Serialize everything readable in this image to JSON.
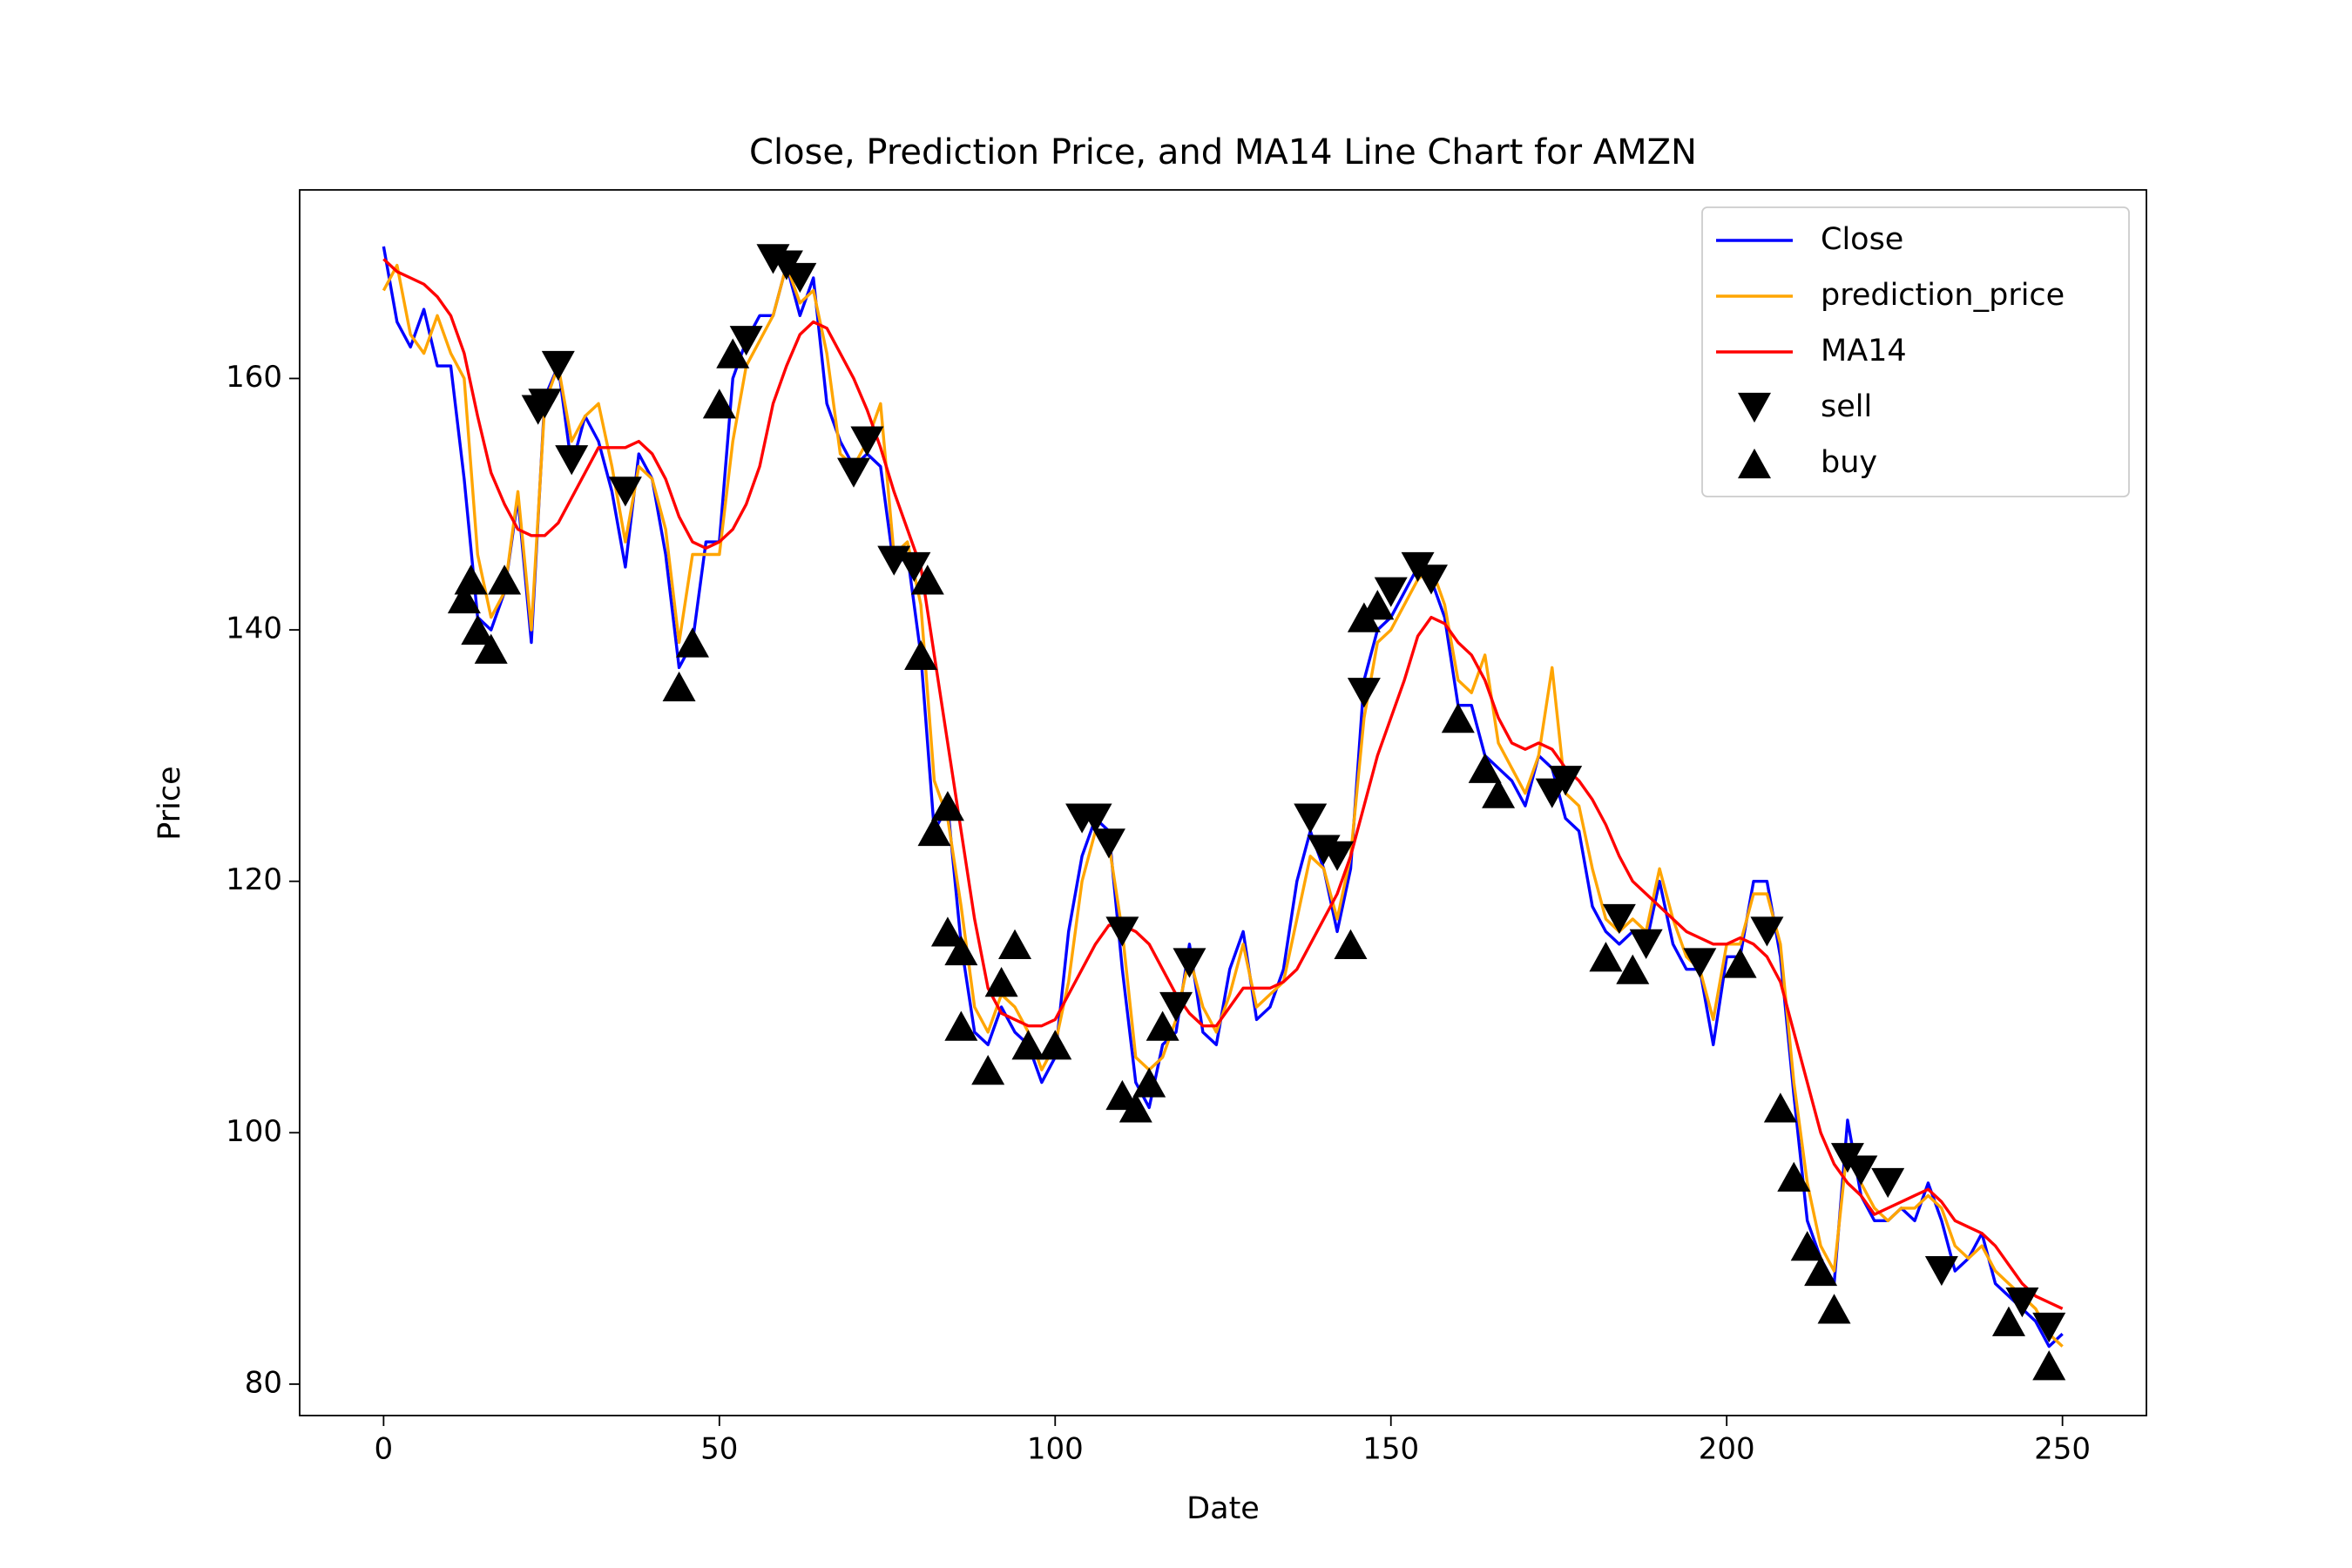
{
  "chart_data": {
    "type": "line",
    "title": "Close, Prediction Price, and MA14 Line Chart for AMZN",
    "x_label": "Date",
    "y_label": "Price",
    "xlim": [
      -12.5,
      262.5
    ],
    "ylim": [
      77.5,
      175.0
    ],
    "xticks": [
      0,
      50,
      100,
      150,
      200,
      250
    ],
    "yticks": [
      80,
      100,
      120,
      140,
      160
    ],
    "grid": false,
    "legend": "upper right",
    "x": [
      0,
      2,
      4,
      6,
      8,
      10,
      12,
      14,
      16,
      18,
      20,
      22,
      24,
      26,
      28,
      30,
      32,
      34,
      36,
      38,
      40,
      42,
      44,
      46,
      48,
      50,
      52,
      54,
      56,
      58,
      60,
      62,
      64,
      66,
      68,
      70,
      72,
      74,
      76,
      78,
      80,
      82,
      84,
      86,
      88,
      90,
      92,
      94,
      96,
      98,
      100,
      102,
      104,
      106,
      108,
      110,
      112,
      114,
      116,
      118,
      120,
      122,
      124,
      126,
      128,
      130,
      132,
      134,
      136,
      138,
      140,
      142,
      144,
      146,
      148,
      150,
      152,
      154,
      156,
      158,
      160,
      162,
      164,
      166,
      168,
      170,
      172,
      174,
      176,
      178,
      180,
      182,
      184,
      186,
      188,
      190,
      192,
      194,
      196,
      198,
      200,
      202,
      204,
      206,
      208,
      210,
      212,
      214,
      216,
      218,
      220,
      222,
      224,
      226,
      228,
      230,
      232,
      234,
      236,
      238,
      240,
      242,
      244,
      246,
      248,
      250
    ],
    "series": [
      {
        "name": "Close",
        "color": "#0000ff",
        "values": [
          170.5,
          164.5,
          162.5,
          165.5,
          161,
          161,
          152,
          141,
          140,
          143,
          150.5,
          139,
          158.5,
          161,
          153,
          157,
          155,
          151,
          145,
          154,
          152,
          146,
          137,
          139,
          147,
          147,
          160,
          163,
          165,
          165,
          169,
          165,
          168,
          158,
          155,
          153,
          154,
          153,
          145,
          146,
          138,
          124,
          126,
          115,
          108,
          107,
          110,
          108,
          107,
          104,
          106,
          116,
          122,
          125,
          124,
          113,
          104,
          102,
          107,
          108,
          115,
          108,
          107,
          113,
          116,
          109,
          110,
          113,
          120,
          124,
          121,
          116,
          121,
          136,
          140,
          141,
          143,
          145,
          144,
          141,
          134,
          134,
          130,
          129,
          128,
          126,
          130,
          129,
          125,
          124,
          118,
          116,
          115,
          116,
          115,
          120,
          115,
          113,
          113,
          107,
          114,
          114,
          120,
          120,
          114,
          103,
          93,
          90,
          88,
          101,
          95,
          93,
          93,
          94,
          93,
          96,
          93,
          89,
          90,
          92,
          88,
          87,
          86,
          85,
          83,
          84
        ]
      },
      {
        "name": "prediction_price",
        "color": "#ffa500",
        "values": [
          167,
          169,
          163.5,
          162,
          165,
          162,
          160,
          146,
          141,
          143,
          151,
          140,
          158,
          161,
          155,
          157,
          158,
          153,
          147,
          153,
          152,
          148,
          139,
          146,
          146,
          146,
          155,
          161,
          163,
          165,
          169,
          166,
          167,
          162,
          154,
          153,
          155,
          158,
          146,
          147,
          142,
          128,
          125,
          118,
          110,
          108,
          111,
          110,
          108,
          105,
          107,
          112,
          120,
          124,
          123,
          116,
          106,
          105,
          106,
          109,
          114,
          110,
          108,
          111,
          115,
          110,
          111,
          112,
          117,
          122,
          121,
          117,
          122,
          133,
          139,
          140,
          142,
          144,
          145,
          142,
          136,
          135,
          138,
          131,
          129,
          127,
          130,
          137,
          127,
          126,
          121,
          117,
          116,
          117,
          116,
          121,
          117,
          114,
          113,
          109,
          115,
          115,
          119,
          119,
          115,
          104,
          96,
          91,
          89,
          99,
          96,
          94,
          93,
          94,
          94,
          95,
          94,
          91,
          90,
          91,
          89,
          88,
          87,
          86,
          84,
          83
        ]
      },
      {
        "name": "MA14",
        "color": "#ff0000",
        "values": [
          169.5,
          168.5,
          168,
          167.5,
          166.5,
          165,
          162,
          157,
          152.5,
          150,
          148,
          147.5,
          147.5,
          148.5,
          150.5,
          152.5,
          154.5,
          154.5,
          154.5,
          155,
          154,
          152,
          149,
          147,
          146.5,
          147,
          148,
          150,
          153,
          158,
          161,
          163.5,
          164.5,
          164,
          162,
          160,
          157.5,
          154.5,
          151,
          148,
          145,
          138,
          131,
          124,
          117,
          111.5,
          109.5,
          109,
          108.5,
          108.5,
          109,
          111,
          113,
          115,
          116.5,
          116.5,
          116,
          115,
          113,
          111,
          109.5,
          108.5,
          108.5,
          110,
          111.5,
          111.5,
          111.5,
          112,
          113,
          115,
          117,
          119,
          122,
          126,
          130,
          133,
          136,
          139.5,
          141,
          140.5,
          139,
          138,
          136,
          133,
          131,
          130.5,
          131,
          130.5,
          129,
          128,
          126.5,
          124.5,
          122,
          120,
          119,
          118,
          117,
          116,
          115.5,
          115,
          115,
          115.5,
          115,
          114,
          112,
          108,
          104,
          100,
          97.5,
          96,
          95,
          93.5,
          94,
          94.5,
          95,
          95.5,
          94.5,
          93,
          92.5,
          92,
          91,
          89.5,
          88,
          87,
          86.5,
          86
        ]
      },
      {
        "name": "sell",
        "color": "#000000",
        "marker": "v",
        "x": [
          23,
          24,
          26,
          28,
          36,
          54,
          58,
          60,
          62,
          70,
          72,
          76,
          79,
          104,
          106,
          108,
          110,
          118,
          120,
          138,
          140,
          142,
          146,
          150,
          154,
          156,
          174,
          176,
          184,
          188,
          196,
          206,
          218,
          220,
          224,
          232,
          244,
          248
        ],
        "values": [
          157.5,
          158,
          161,
          153.5,
          151,
          163,
          169.5,
          169,
          168,
          152.5,
          155,
          145.5,
          145,
          125,
          125,
          123,
          116,
          110,
          113.5,
          125,
          122.5,
          122,
          135,
          143,
          145,
          144,
          127,
          128,
          117,
          115,
          113.5,
          116,
          98,
          97,
          96,
          89,
          86.5,
          84.5
        ]
      },
      {
        "name": "buy",
        "color": "#000000",
        "marker": "^",
        "x": [
          12,
          13,
          14,
          16,
          18,
          44,
          46,
          50,
          52,
          80,
          81,
          82,
          84,
          84,
          86,
          86,
          90,
          92,
          94,
          96,
          100,
          110,
          112,
          114,
          116,
          144,
          146,
          148,
          160,
          164,
          166,
          182,
          186,
          202,
          208,
          210,
          212,
          214,
          216,
          242,
          248
        ],
        "values": [
          142.5,
          144,
          140,
          138.5,
          144,
          135.5,
          139,
          158,
          162,
          138,
          144,
          124,
          126,
          116,
          114.5,
          108.5,
          105,
          112,
          115,
          107,
          107,
          103,
          102,
          104,
          108.5,
          115,
          141,
          142,
          133,
          129,
          127,
          114,
          113,
          113.5,
          102,
          96.5,
          91,
          89,
          86,
          85,
          81.5
        ]
      }
    ]
  }
}
